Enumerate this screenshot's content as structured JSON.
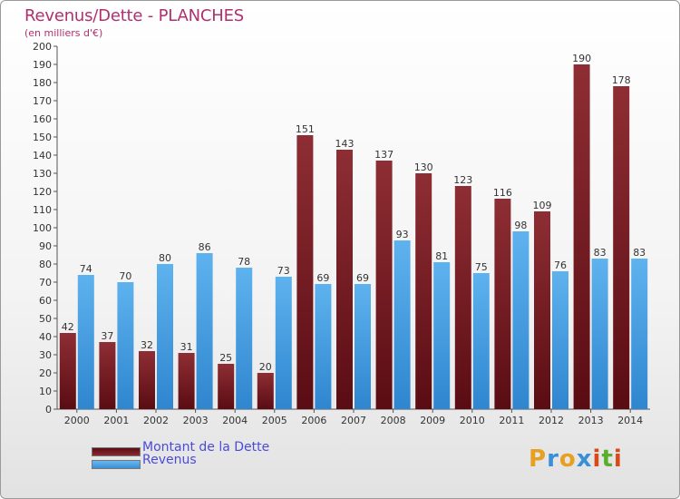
{
  "chart_data": {
    "type": "bar",
    "title": "Revenus/Dette - PLANCHES",
    "subtitle": "(en milliers d'€)",
    "xlabel": "",
    "ylabel": "",
    "ylim": [
      0,
      200
    ],
    "ytick_step": 10,
    "grid": false,
    "categories": [
      "2000",
      "2001",
      "2002",
      "2003",
      "2004",
      "2005",
      "2006",
      "2007",
      "2008",
      "2009",
      "2010",
      "2011",
      "2012",
      "2013",
      "2014"
    ],
    "series": [
      {
        "name": "Montant de la Dette",
        "color": "#7a1f25",
        "values": [
          42,
          37,
          32,
          31,
          25,
          20,
          151,
          143,
          137,
          130,
          123,
          116,
          109,
          190,
          178
        ]
      },
      {
        "name": "Revenus",
        "color": "#4a9fdf",
        "values": [
          74,
          70,
          80,
          86,
          78,
          73,
          69,
          69,
          93,
          81,
          75,
          98,
          76,
          83,
          83
        ]
      }
    ],
    "legend_position": "bottom-left"
  },
  "branding": {
    "letters": [
      "P",
      "r",
      "o",
      "x",
      "i",
      "t",
      "i"
    ],
    "colors": [
      "#e8a020",
      "#3a8fd6",
      "#e8a020",
      "#3a8fd6",
      "#d94a1a",
      "#5aae2e",
      "#d94a1a"
    ]
  }
}
